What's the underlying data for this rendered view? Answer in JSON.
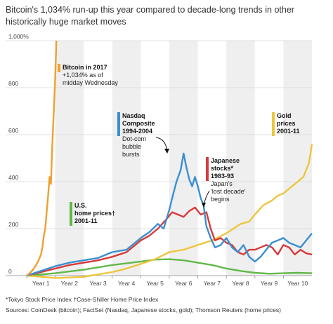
{
  "title": "Bitcoin's 1,034% run-up this year compared to decade-long trends in other historically huge market moves",
  "footnote": "*Tokyo Stock Price Index   †Case-Shiller Home Price Index",
  "sources": "Sources: CoinDesk (bitcoin); FactSet (Nasdaq, Japanese stocks, gold); Thomson Reuters (home prices)",
  "chart_data": {
    "type": "line",
    "ylim": [
      0,
      1000
    ],
    "xlim": [
      0,
      10
    ],
    "yticks": [
      0,
      200,
      400,
      600,
      800,
      1000
    ],
    "ytick_labels": [
      "0",
      "200",
      "400",
      "600",
      "800",
      "1,000%"
    ],
    "categories": [
      "Year 1",
      "Year 2",
      "Year 3",
      "Year 4",
      "Year 5",
      "Year 6",
      "Year 7",
      "Year 8",
      "Year 9",
      "Year 10"
    ],
    "grid": true,
    "colors": {
      "bitcoin": "#f0a030",
      "nasdaq": "#3a8fd0",
      "japan": "#d83a3a",
      "gold": "#ecc63d",
      "us_home": "#62b84a",
      "band": "#efefef",
      "gridline": "#d6d6d6"
    },
    "series": [
      {
        "key": "bitcoin",
        "x": [
          0,
          0.1,
          0.2,
          0.3,
          0.4,
          0.5,
          0.55,
          0.6,
          0.65,
          0.7,
          0.75,
          0.8,
          0.85,
          0.9,
          0.95,
          1.0,
          1.05
        ],
        "values": [
          0,
          10,
          22,
          40,
          60,
          90,
          120,
          170,
          200,
          270,
          340,
          420,
          390,
          560,
          700,
          840,
          1034
        ]
      },
      {
        "key": "nasdaq",
        "x": [
          0,
          0.5,
          1.0,
          1.5,
          2.0,
          2.5,
          3.0,
          3.5,
          4.0,
          4.3,
          4.6,
          4.8,
          5.0,
          5.1,
          5.25,
          5.4,
          5.5,
          5.6,
          5.7,
          5.8,
          5.9,
          6.0,
          6.1,
          6.2,
          6.3,
          6.45,
          6.6,
          6.8,
          7.0,
          7.2,
          7.4,
          7.6,
          7.8,
          8.0,
          8.2,
          8.4,
          8.6,
          8.8,
          9.0,
          9.2,
          9.4,
          9.6,
          9.8,
          10.0
        ],
        "values": [
          0,
          20,
          40,
          55,
          65,
          75,
          100,
          110,
          160,
          185,
          220,
          200,
          280,
          330,
          400,
          450,
          520,
          460,
          410,
          380,
          420,
          380,
          330,
          300,
          210,
          160,
          120,
          130,
          160,
          120,
          100,
          130,
          80,
          60,
          80,
          110,
          140,
          150,
          160,
          140,
          130,
          120,
          150,
          180
        ]
      },
      {
        "key": "japan",
        "x": [
          0,
          0.5,
          1.0,
          1.5,
          2.0,
          2.5,
          3.0,
          3.5,
          4.0,
          4.3,
          4.6,
          4.9,
          5.1,
          5.3,
          5.5,
          5.7,
          5.9,
          6.1,
          6.3,
          6.45,
          6.6,
          6.8,
          7.0,
          7.2,
          7.4,
          7.6,
          7.8,
          8.0,
          8.2,
          8.4,
          8.6,
          8.8,
          9.0,
          9.2,
          9.4,
          9.6,
          9.8,
          10.0
        ],
        "values": [
          0,
          15,
          30,
          45,
          55,
          65,
          80,
          100,
          150,
          170,
          200,
          240,
          270,
          260,
          250,
          275,
          290,
          260,
          270,
          200,
          150,
          160,
          140,
          130,
          100,
          90,
          110,
          110,
          120,
          130,
          120,
          90,
          130,
          120,
          90,
          110,
          95,
          90
        ]
      },
      {
        "key": "gold",
        "x": [
          0,
          0.5,
          1.0,
          1.5,
          2.0,
          2.5,
          3.0,
          3.5,
          4.0,
          4.5,
          5.0,
          5.5,
          6.0,
          6.5,
          7.0,
          7.5,
          7.8,
          8.0,
          8.3,
          8.6,
          8.8,
          9.0,
          9.3,
          9.5,
          9.7,
          9.9,
          10.0
        ],
        "values": [
          0,
          -5,
          -10,
          -8,
          -5,
          5,
          15,
          30,
          50,
          70,
          100,
          110,
          130,
          150,
          180,
          220,
          230,
          260,
          300,
          320,
          340,
          350,
          380,
          400,
          420,
          480,
          560
        ]
      },
      {
        "key": "us_home",
        "x": [
          0,
          1.0,
          2.0,
          3.0,
          4.0,
          4.5,
          5.0,
          5.5,
          6.0,
          6.5,
          7.0,
          7.5,
          8.0,
          8.5,
          9.0,
          9.5,
          10.0
        ],
        "values": [
          0,
          10,
          25,
          45,
          60,
          68,
          70,
          65,
          55,
          45,
          30,
          20,
          12,
          8,
          10,
          12,
          10
        ]
      }
    ],
    "annotations": {
      "bitcoin": {
        "title": "Bitcoin in 2017",
        "lines": [
          "+1,034% as of",
          "midday Wednesday"
        ]
      },
      "nasdaq": {
        "title_lines": [
          "Nasdaq",
          "Composite",
          "1994-2004"
        ],
        "lines": [
          "Dot-com",
          "bubble",
          "bursts"
        ]
      },
      "japan": {
        "title_lines": [
          "Japanese",
          "stocks*",
          "1983-93"
        ],
        "lines": [
          "Japan's",
          "'lost decade'",
          "begins"
        ]
      },
      "gold": {
        "title_lines": [
          "Gold",
          "prices",
          "2001-11"
        ]
      },
      "us_home": {
        "title_lines": [
          "U.S.",
          "home prices†",
          "2001-11"
        ]
      }
    }
  }
}
